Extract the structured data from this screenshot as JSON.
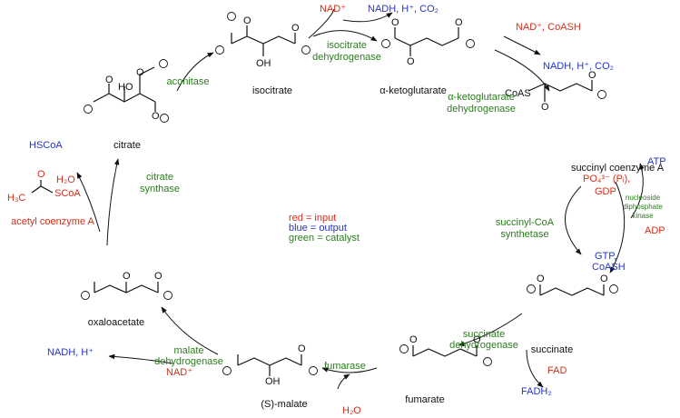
{
  "molecules": [
    {
      "name": "citrate",
      "atoms": [
        "HO",
        "O",
        "O",
        "O"
      ]
    },
    {
      "name": "isocitrate",
      "atoms": [
        "O",
        "OH",
        "O"
      ]
    },
    {
      "name": "α-ketoglutarate",
      "atoms": [
        "O",
        "O",
        "O"
      ]
    },
    {
      "name": "succinyl coenzyme A",
      "atoms": [
        "CoAS",
        "O",
        "O"
      ]
    },
    {
      "name": "succinate",
      "atoms": [
        "O",
        "O"
      ]
    },
    {
      "name": "fumarate",
      "atoms": [
        "O",
        "O"
      ]
    },
    {
      "name": "(S)-malate",
      "atoms": [
        "OH",
        "O"
      ]
    },
    {
      "name": "oxaloacetate",
      "atoms": [
        "O",
        "O"
      ]
    },
    {
      "name": "acetyl coenzyme A",
      "atoms": [
        "O",
        "H₃C",
        "SCoA"
      ]
    }
  ],
  "enzymes": [
    [
      "aconitase"
    ],
    [
      "isocitrate",
      "dehydrogenase"
    ],
    [
      "α-ketoglutarate",
      "dehydrogenase"
    ],
    [
      "succinyl-CoA",
      "synthetase"
    ],
    [
      "succinate",
      "dehydrogenase"
    ],
    [
      "fumarase"
    ],
    [
      "malate",
      "dehydrogenase"
    ],
    [
      "citrate",
      "synthase"
    ],
    [
      "nucleoside",
      "diphosphate",
      "kinase"
    ]
  ],
  "inputs": [
    "NAD⁺",
    "NAD⁺, CoASH",
    "PO₄³⁻ (Pᵢ),",
    "GDP",
    "ADP",
    "FAD",
    "H₂O",
    "NAD⁺",
    "H₂O"
  ],
  "outputs": [
    "NADH, H⁺, CO₂",
    "NADH, H⁺, CO₂",
    "ATP",
    "GTP,",
    "CoASH",
    "FADH₂",
    "NADH, H⁺",
    "HSCoA"
  ],
  "legend": [
    "red = input",
    "blue = output",
    "green = catalyst"
  ]
}
